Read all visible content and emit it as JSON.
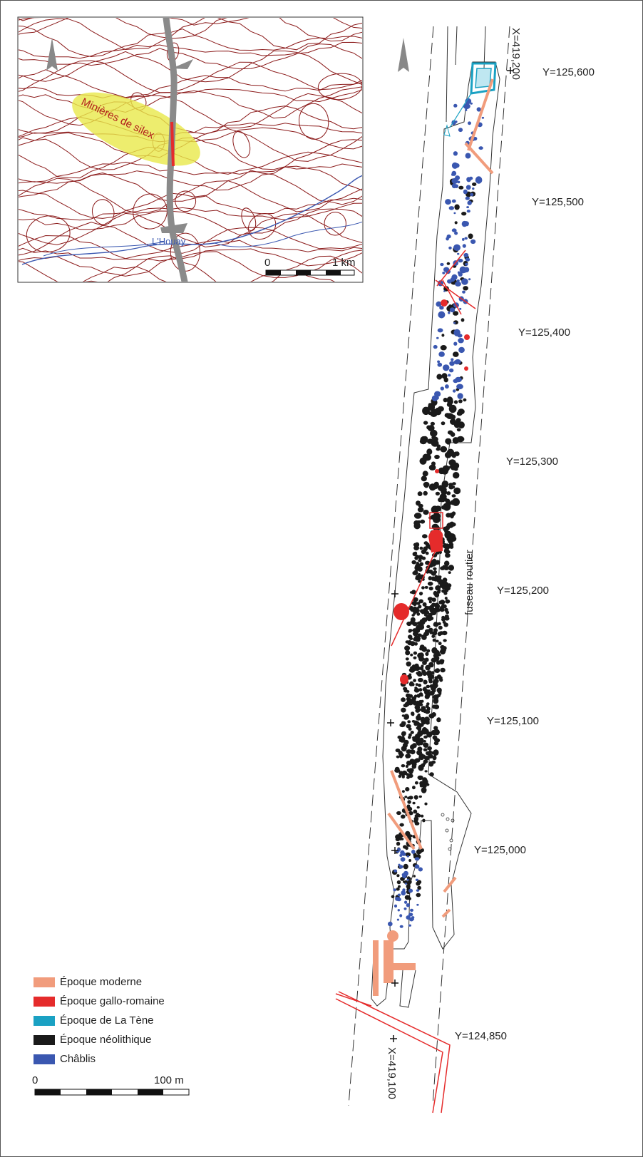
{
  "inset_map": {
    "label_mines": "Minières de silex",
    "label_river": "L'Houay",
    "scale_start": "0",
    "scale_end": "1 km"
  },
  "main_map": {
    "y_coords": [
      "Y=125,600",
      "Y=125,500",
      "Y=125,400",
      "Y=125,300",
      "Y=125,200",
      "Y=125,100",
      "Y=125,000",
      "Y=124,850"
    ],
    "x_coord_top": "X=419,200",
    "x_coord_bottom": "X=419,100",
    "road_corridor": "fuseau routier",
    "scale_start": "0",
    "scale_end": "100 m"
  },
  "legend": [
    {
      "label": "Époque moderne",
      "color": "#f19c7c"
    },
    {
      "label": "Époque gallo-romaine",
      "color": "#e52b2b"
    },
    {
      "label": "Époque de La Tène",
      "color": "#1aa1c3"
    },
    {
      "label": "Époque néolithique",
      "color": "#1a1a1a"
    },
    {
      "label": "Châblis",
      "color": "#3a57b0"
    }
  ],
  "colors": {
    "contour": "#8b1a1a",
    "river": "#3a57b0",
    "trace": "#8a8a8a",
    "highlight": "#e8e84a"
  }
}
